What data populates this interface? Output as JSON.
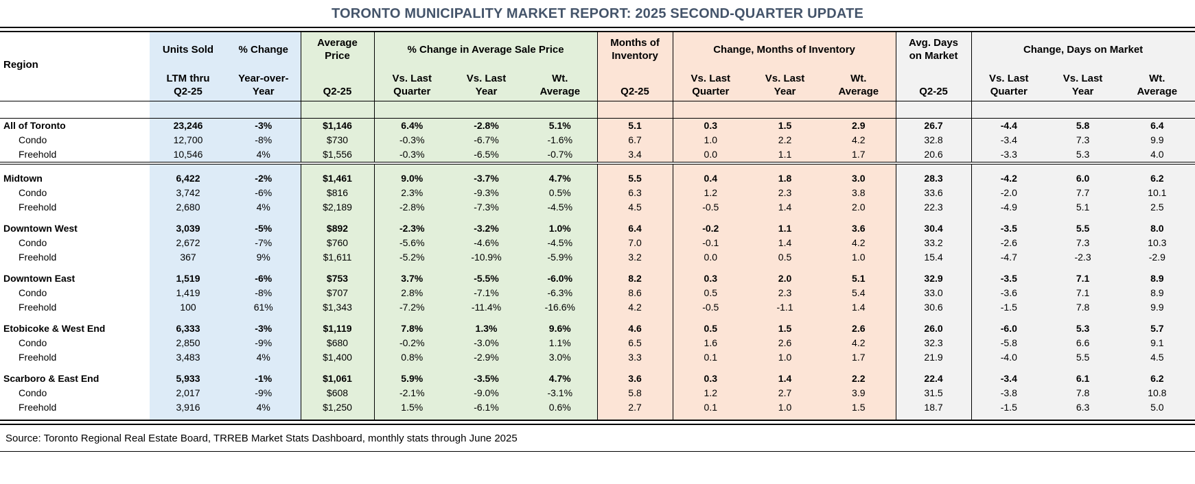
{
  "title": "TORONTO MUNICIPALITY MARKET REPORT: 2025 SECOND-QUARTER UPDATE",
  "source_note": "Source: Toronto Regional Real Estate Board, TRREB Market Stats Dashboard, monthly stats through June 2025",
  "colors": {
    "title_text": "#44546A",
    "units_group_bg": "#DDEBF7",
    "price_group_bg": "#E2EFDA",
    "inventory_group_bg": "#FCE4D6",
    "days_group_bg": "#F2F2F2",
    "border": "#000000"
  },
  "header": {
    "region_label": "Region",
    "top_groups": [
      {
        "id": "units-sold",
        "label": "Units Sold",
        "span": 1,
        "bg": "blue",
        "bl": false
      },
      {
        "id": "pct-change",
        "label": "% Change",
        "span": 1,
        "bg": "blue",
        "bl": false
      },
      {
        "id": "average-price",
        "label": "Average\nPrice",
        "span": 1,
        "bg": "green",
        "bl": true
      },
      {
        "id": "pct-change-avg-sale-price",
        "label": "% Change in Average Sale Price",
        "span": 3,
        "bg": "green",
        "bl": true
      },
      {
        "id": "months-of-inventory",
        "label": "Months of\nInventory",
        "span": 1,
        "bg": "peach",
        "bl": true
      },
      {
        "id": "change-months-of-inventory",
        "label": "Change, Months of Inventory",
        "span": 3,
        "bg": "peach",
        "bl": true
      },
      {
        "id": "avg-days-on-market",
        "label": "Avg. Days\non Market",
        "span": 1,
        "bg": "gray",
        "bl": true
      },
      {
        "id": "change-days-on-market",
        "label": "Change, Days on Market",
        "span": 3,
        "bg": "gray",
        "bl": true
      }
    ],
    "sub_headers": [
      {
        "label": "LTM thru\nQ2-25"
      },
      {
        "label": "Year-over-\nYear"
      },
      {
        "label": "Q2-25"
      },
      {
        "label": "Vs. Last\nQuarter"
      },
      {
        "label": "Vs. Last\nYear"
      },
      {
        "label": "Wt.\nAverage"
      },
      {
        "label": "Q2-25"
      },
      {
        "label": "Vs. Last\nQuarter"
      },
      {
        "label": "Vs. Last\nYear"
      },
      {
        "label": "Wt.\nAverage"
      },
      {
        "label": "Q2-25"
      },
      {
        "label": "Vs. Last\nQuarter"
      },
      {
        "label": "Vs. Last\nYear"
      },
      {
        "label": "Wt.\nAverage"
      }
    ]
  },
  "columns": [
    {
      "id": "units-sold",
      "bg": "blue",
      "bl": false
    },
    {
      "id": "units-pct-change-yoy",
      "bg": "blue",
      "bl": false
    },
    {
      "id": "avg-price",
      "bg": "green",
      "bl": true
    },
    {
      "id": "price-vs-last-quarter",
      "bg": "green",
      "bl": true
    },
    {
      "id": "price-vs-last-year",
      "bg": "green",
      "bl": false
    },
    {
      "id": "price-wt-average",
      "bg": "green",
      "bl": false
    },
    {
      "id": "months-inventory",
      "bg": "peach",
      "bl": true
    },
    {
      "id": "moi-vs-last-quarter",
      "bg": "peach",
      "bl": true
    },
    {
      "id": "moi-vs-last-year",
      "bg": "peach",
      "bl": false
    },
    {
      "id": "moi-wt-average",
      "bg": "peach",
      "bl": false
    },
    {
      "id": "avg-days-on-market",
      "bg": "gray",
      "bl": true
    },
    {
      "id": "dom-vs-last-quarter",
      "bg": "gray",
      "bl": true
    },
    {
      "id": "dom-vs-last-year",
      "bg": "gray",
      "bl": false
    },
    {
      "id": "dom-wt-average",
      "bg": "gray",
      "bl": false
    }
  ],
  "sections": [
    {
      "rule_before": false,
      "rows": [
        {
          "region": "All of Toronto",
          "style": "total",
          "values": [
            "23,246",
            "-3%",
            "$1,146",
            "6.4%",
            "-2.8%",
            "5.1%",
            "5.1",
            "0.3",
            "1.5",
            "2.9",
            "26.7",
            "-4.4",
            "5.8",
            "6.4"
          ]
        },
        {
          "region": "Condo",
          "style": "sub",
          "values": [
            "12,700",
            "-8%",
            "$730",
            "-0.3%",
            "-6.7%",
            "-1.6%",
            "6.7",
            "1.0",
            "2.2",
            "4.2",
            "32.8",
            "-3.4",
            "7.3",
            "9.9"
          ]
        },
        {
          "region": "Freehold",
          "style": "sub",
          "values": [
            "10,546",
            "4%",
            "$1,556",
            "-0.3%",
            "-6.5%",
            "-0.7%",
            "3.4",
            "0.0",
            "1.1",
            "1.7",
            "20.6",
            "-3.3",
            "5.3",
            "4.0"
          ]
        }
      ]
    },
    {
      "rule_before": true,
      "rows": [
        {
          "region": "Midtown",
          "style": "total",
          "values": [
            "6,422",
            "-2%",
            "$1,461",
            "9.0%",
            "-3.7%",
            "4.7%",
            "5.5",
            "0.4",
            "1.8",
            "3.0",
            "28.3",
            "-4.2",
            "6.0",
            "6.2"
          ]
        },
        {
          "region": "Condo",
          "style": "sub",
          "values": [
            "3,742",
            "-6%",
            "$816",
            "2.3%",
            "-9.3%",
            "0.5%",
            "6.3",
            "1.2",
            "2.3",
            "3.8",
            "33.6",
            "-2.0",
            "7.7",
            "10.1"
          ]
        },
        {
          "region": "Freehold",
          "style": "sub",
          "values": [
            "2,680",
            "4%",
            "$2,189",
            "-2.8%",
            "-7.3%",
            "-4.5%",
            "4.5",
            "-0.5",
            "1.4",
            "2.0",
            "22.3",
            "-4.9",
            "5.1",
            "2.5"
          ]
        }
      ]
    },
    {
      "rule_before": false,
      "rows": [
        {
          "region": "Downtown West",
          "style": "total",
          "values": [
            "3,039",
            "-5%",
            "$892",
            "-2.3%",
            "-3.2%",
            "1.0%",
            "6.4",
            "-0.2",
            "1.1",
            "3.6",
            "30.4",
            "-3.5",
            "5.5",
            "8.0"
          ]
        },
        {
          "region": "Condo",
          "style": "sub",
          "values": [
            "2,672",
            "-7%",
            "$760",
            "-5.6%",
            "-4.6%",
            "-4.5%",
            "7.0",
            "-0.1",
            "1.4",
            "4.2",
            "33.2",
            "-2.6",
            "7.3",
            "10.3"
          ]
        },
        {
          "region": "Freehold",
          "style": "sub",
          "values": [
            "367",
            "9%",
            "$1,611",
            "-5.2%",
            "-10.9%",
            "-5.9%",
            "3.2",
            "0.0",
            "0.5",
            "1.0",
            "15.4",
            "-4.7",
            "-2.3",
            "-2.9"
          ]
        }
      ]
    },
    {
      "rule_before": false,
      "rows": [
        {
          "region": "Downtown East",
          "style": "total",
          "values": [
            "1,519",
            "-6%",
            "$753",
            "3.7%",
            "-5.5%",
            "-6.0%",
            "8.2",
            "0.3",
            "2.0",
            "5.1",
            "32.9",
            "-3.5",
            "7.1",
            "8.9"
          ]
        },
        {
          "region": "Condo",
          "style": "sub",
          "values": [
            "1,419",
            "-8%",
            "$707",
            "2.8%",
            "-7.1%",
            "-6.3%",
            "8.6",
            "0.5",
            "2.3",
            "5.4",
            "33.0",
            "-3.6",
            "7.1",
            "8.9"
          ]
        },
        {
          "region": "Freehold",
          "style": "sub",
          "values": [
            "100",
            "61%",
            "$1,343",
            "-7.2%",
            "-11.4%",
            "-16.6%",
            "4.2",
            "-0.5",
            "-1.1",
            "1.4",
            "30.6",
            "-1.5",
            "7.8",
            "9.9"
          ]
        }
      ]
    },
    {
      "rule_before": false,
      "rows": [
        {
          "region": "Etobicoke & West End",
          "style": "total",
          "values": [
            "6,333",
            "-3%",
            "$1,119",
            "7.8%",
            "1.3%",
            "9.6%",
            "4.6",
            "0.5",
            "1.5",
            "2.6",
            "26.0",
            "-6.0",
            "5.3",
            "5.7"
          ]
        },
        {
          "region": "Condo",
          "style": "sub",
          "values": [
            "2,850",
            "-9%",
            "$680",
            "-0.2%",
            "-3.0%",
            "1.1%",
            "6.5",
            "1.6",
            "2.6",
            "4.2",
            "32.3",
            "-5.8",
            "6.6",
            "9.1"
          ]
        },
        {
          "region": "Freehold",
          "style": "sub",
          "values": [
            "3,483",
            "4%",
            "$1,400",
            "0.8%",
            "-2.9%",
            "3.0%",
            "3.3",
            "0.1",
            "1.0",
            "1.7",
            "21.9",
            "-4.0",
            "5.5",
            "4.5"
          ]
        }
      ]
    },
    {
      "rule_before": false,
      "rows": [
        {
          "region": "Scarboro & East End",
          "style": "total",
          "values": [
            "5,933",
            "-1%",
            "$1,061",
            "5.9%",
            "-3.5%",
            "4.7%",
            "3.6",
            "0.3",
            "1.4",
            "2.2",
            "22.4",
            "-3.4",
            "6.1",
            "6.2"
          ]
        },
        {
          "region": "Condo",
          "style": "sub",
          "values": [
            "2,017",
            "-9%",
            "$608",
            "-2.1%",
            "-9.0%",
            "-3.1%",
            "5.8",
            "1.2",
            "2.7",
            "3.9",
            "31.5",
            "-3.8",
            "7.8",
            "10.8"
          ]
        },
        {
          "region": "Freehold",
          "style": "sub",
          "values": [
            "3,916",
            "4%",
            "$1,250",
            "1.5%",
            "-6.1%",
            "0.6%",
            "2.7",
            "0.1",
            "1.0",
            "1.5",
            "18.7",
            "-1.5",
            "6.3",
            "5.0"
          ]
        }
      ]
    }
  ]
}
